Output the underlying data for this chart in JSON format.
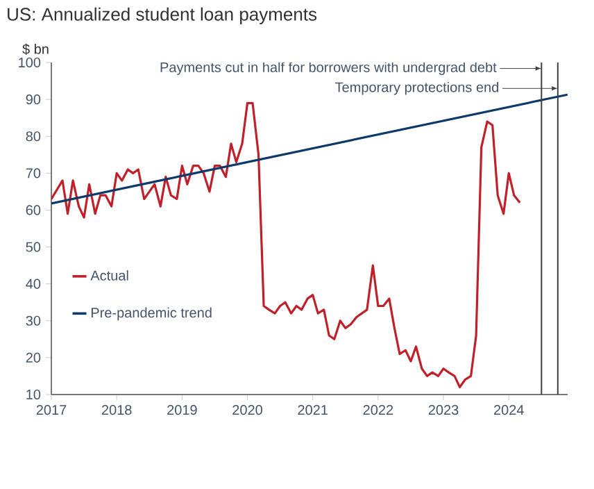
{
  "chart_data": {
    "type": "line",
    "title": "US: Annualized student loan payments",
    "ylabel": "$ bn",
    "xlim": [
      2017,
      2024.9
    ],
    "ylim": [
      10,
      100
    ],
    "xticks": [
      2017,
      2018,
      2019,
      2020,
      2021,
      2022,
      2023,
      2024
    ],
    "yticks": [
      10,
      20,
      30,
      40,
      50,
      60,
      70,
      80,
      90,
      100
    ],
    "legend": "left",
    "grid": false,
    "marker": "none",
    "line_style": "solid",
    "series": [
      {
        "name": "Actual",
        "color": "#c0202a",
        "x": [
          2017.0,
          2017.17,
          2017.25,
          2017.33,
          2017.42,
          2017.5,
          2017.58,
          2017.67,
          2017.75,
          2017.83,
          2017.92,
          2018.0,
          2018.08,
          2018.17,
          2018.25,
          2018.33,
          2018.42,
          2018.5,
          2018.58,
          2018.67,
          2018.75,
          2018.83,
          2018.92,
          2019.0,
          2019.08,
          2019.17,
          2019.25,
          2019.33,
          2019.42,
          2019.5,
          2019.58,
          2019.67,
          2019.75,
          2019.83,
          2019.92,
          2020.0,
          2020.08,
          2020.17,
          2020.25,
          2020.33,
          2020.42,
          2020.5,
          2020.58,
          2020.67,
          2020.75,
          2020.83,
          2020.92,
          2021.0,
          2021.08,
          2021.17,
          2021.25,
          2021.33,
          2021.42,
          2021.5,
          2021.58,
          2021.67,
          2021.75,
          2021.83,
          2021.92,
          2022.0,
          2022.08,
          2022.17,
          2022.25,
          2022.33,
          2022.42,
          2022.5,
          2022.58,
          2022.67,
          2022.75,
          2022.83,
          2022.92,
          2023.0,
          2023.08,
          2023.17,
          2023.25,
          2023.33,
          2023.42,
          2023.5,
          2023.58,
          2023.67,
          2023.75,
          2023.83,
          2023.92,
          2024.0,
          2024.08,
          2024.17
        ],
        "values": [
          63,
          68,
          59,
          68,
          61,
          58,
          67,
          59,
          64,
          64,
          61,
          70,
          68,
          71,
          70,
          71,
          63,
          65,
          67,
          61,
          69,
          64,
          63,
          72,
          67,
          72,
          72,
          70,
          65,
          72,
          72,
          69,
          78,
          73,
          78,
          89,
          89,
          75,
          34,
          33,
          32,
          34,
          35,
          32,
          34,
          33,
          36,
          37,
          32,
          33,
          26,
          25,
          30,
          28,
          29,
          31,
          32,
          33,
          45,
          34,
          34,
          36,
          28,
          21,
          22,
          19,
          23,
          17,
          15,
          16,
          15,
          17,
          16,
          15,
          12,
          14,
          15,
          26,
          77,
          84,
          83,
          64,
          59,
          70,
          64,
          62
        ]
      },
      {
        "name": "Pre-pandemic trend",
        "color": "#0d3a6b",
        "x": [
          2017,
          2024.9
        ],
        "values": [
          61.8,
          91.3
        ]
      }
    ],
    "ref_lines": [
      {
        "axis": "x",
        "value": 2024.5,
        "label": "Payments cut in half for borrowers with undergrad debt",
        "color": "#404040"
      },
      {
        "axis": "x",
        "value": 2024.75,
        "label": "Temporary protections end",
        "color": "#404040"
      }
    ]
  }
}
